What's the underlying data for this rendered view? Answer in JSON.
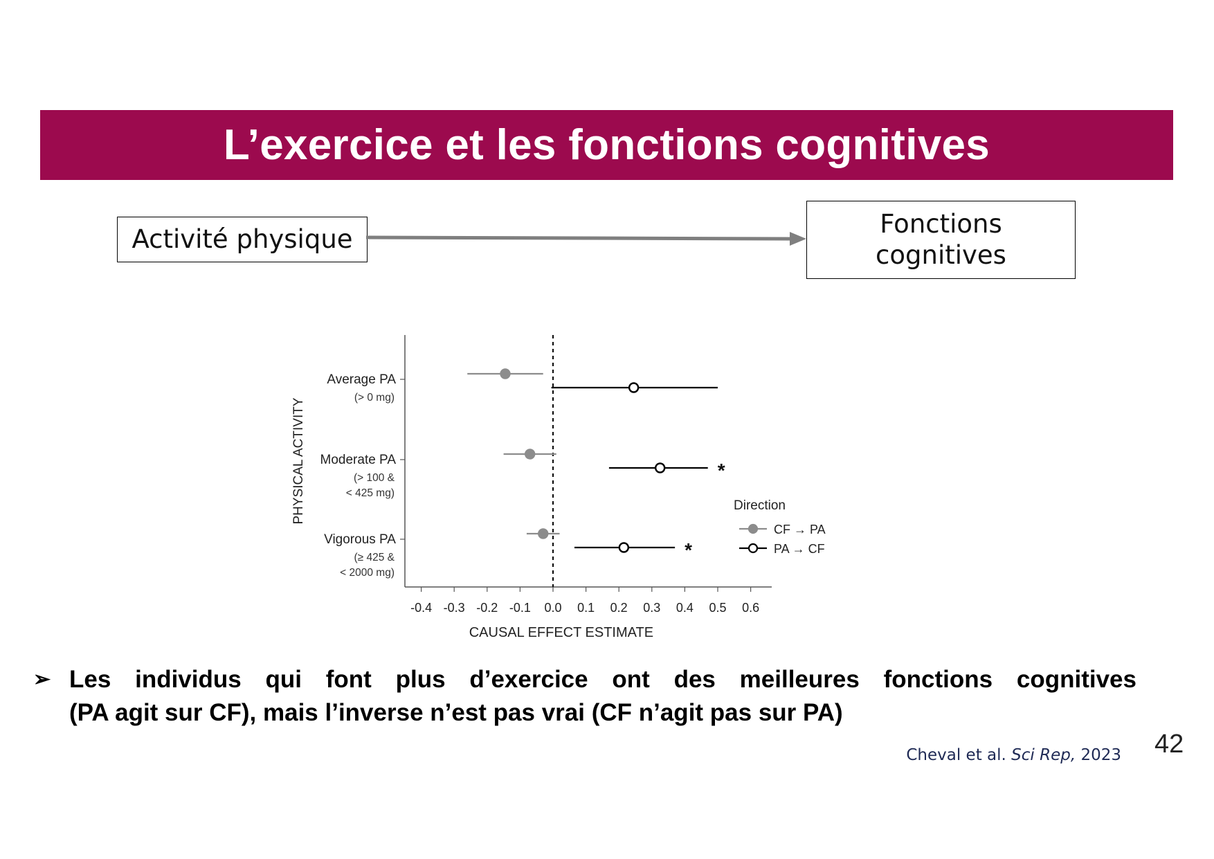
{
  "slide": {
    "title": "L’exercice et les fonctions cognitives",
    "title_bg": "#9c0a4e",
    "page_number": "42"
  },
  "diagram": {
    "left_box": "Activité physique",
    "right_box_line1": "Fonctions",
    "right_box_line2": "cognitives",
    "arrow_color": "#7f7f7f"
  },
  "bullet": {
    "marker": "➢",
    "line1": "Les individus qui font plus d’exercice ont des meilleures fonctions cognitives",
    "line2": "(PA agit sur CF), mais l’inverse n’est pas vrai (CF n’agit pas sur PA)"
  },
  "citation": {
    "authors": "Cheval et al.",
    "journal": "Sci Rep,",
    "year": "2023"
  },
  "chart_data": {
    "type": "scatter",
    "subtype": "forest-plot",
    "xlabel": "CAUSAL  EFFECT  ESTIMATE",
    "ylabel": "PHYSICAL ACTIVITY",
    "xlim": [
      -0.45,
      0.65
    ],
    "xticks": [
      "-0.4",
      "-0.3",
      "-0.2",
      "-0.1",
      "0.0",
      "0.1",
      "0.2",
      "0.3",
      "0.4",
      "0.5",
      "0.6"
    ],
    "reference_line": 0.0,
    "categories": [
      {
        "label": "Average PA",
        "sublabel": [
          "(> 0 mg)"
        ]
      },
      {
        "label": "Moderate PA",
        "sublabel": [
          "(> 100 &",
          "< 425 mg)"
        ]
      },
      {
        "label": "Vigorous PA",
        "sublabel": [
          "(≥ 425 &",
          "< 2000 mg)"
        ]
      }
    ],
    "legend_title": "Direction",
    "legend_position": "right",
    "series": [
      {
        "name": "CF → PA",
        "color": "#8c8c8c",
        "marker": "filled-circle",
        "estimates": [
          -0.145,
          -0.07,
          -0.03
        ],
        "ci_low": [
          -0.26,
          -0.15,
          -0.08
        ],
        "ci_high": [
          -0.03,
          0.01,
          0.02
        ],
        "significance": [
          "",
          "",
          ""
        ]
      },
      {
        "name": "PA → CF",
        "color": "#000000",
        "marker": "open-circle",
        "estimates": [
          0.245,
          0.325,
          0.215
        ],
        "ci_low": [
          -0.005,
          0.17,
          0.065
        ],
        "ci_high": [
          0.5,
          0.47,
          0.37
        ],
        "significance": [
          "",
          "*",
          "*"
        ]
      }
    ]
  }
}
